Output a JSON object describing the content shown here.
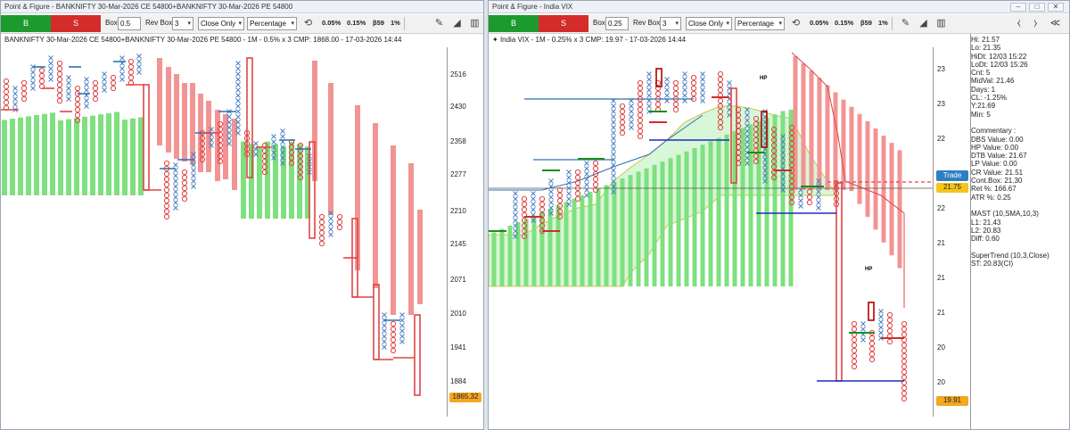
{
  "left_window": {
    "title": "Point & Figure - BANKNIFTY 30-Mar-2026 CE 54800+BANKNIFTY 30-Mar-2026 PE 54800",
    "toolbar": {
      "buy_label": "B",
      "sell_label": "S",
      "box_label": "Box",
      "box_value": "0.5",
      "revbox_label": "Rev Box",
      "revbox_value": "3",
      "method_value": "Close Only",
      "scale_value": "Percentage",
      "pct1": "0.05%",
      "pct2": "0.15%",
      "pct3": "β59",
      "pct4": "1%"
    },
    "chart_header": "BANKNIFTY 30-Mar-2026 CE 54800+BANKNIFTY 30-Mar-2026 PE 54800 - 1M - 0.5% x 3 CMP: 1868.00 - 17-03-2026 14:44",
    "y_ticks": [
      "2516",
      "2430",
      "2358",
      "2277",
      "2210",
      "2145",
      "2071",
      "2010",
      "1941",
      "1884"
    ],
    "current_price_tag": "1865.32",
    "colors": {
      "x_col": "#4a7fc1",
      "o_col": "#e04545",
      "green_band": "#7ee07e",
      "red_band": "#f07f7f"
    }
  },
  "right_window": {
    "title": "Point & Figure - India VIX",
    "toolbar": {
      "buy_label": "B",
      "sell_label": "S",
      "box_label": "Box",
      "box_value": "0.25",
      "revbox_label": "Rev Box",
      "revbox_value": "3",
      "method_value": "Close Only",
      "scale_value": "Percentage",
      "pct1": "0.05%",
      "pct2": "0.15%",
      "pct3": "β59",
      "pct4": "1%"
    },
    "chart_header": "India VIX - 1M - 0.25% x 3 CMP: 19.97 - 17-03-2026 14:44",
    "y_ticks": [
      "23",
      "23",
      "22",
      "22",
      "22",
      "21",
      "21",
      "21",
      "20",
      "20"
    ],
    "trade_tag": "Trade",
    "trade_price_tag": "21.75",
    "current_price_tag": "19.91",
    "hp_labels": [
      "HP",
      "HP",
      "HP"
    ],
    "info_panel": [
      "Hi: 21.57",
      "Lo: 21.35",
      "HiDt: 12/03 15:22",
      "LoDt: 12/03 15:26",
      "Cnt: 5",
      "MidVal: 21.46",
      "Days: 1",
      "CL: -1.25%",
      "Y:21.69",
      "Min: 5",
      "",
      "Commentary :",
      "DBS Value:  0.00",
      "HP Value: 0.00",
      "DTB Value: 21.67",
      "LP Value: 0.00",
      "CR Value: 21.51",
      "Cont.Box: 21.30",
      "Ret %: 166.67",
      "ATR %: 0.25",
      "",
      "MAST (10,SMA,10,3)",
      "L1: 21.43",
      "L2: 20.83",
      "Diff: 0.60",
      "",
      "SuperTrend (10,3,Close)",
      "ST: 20.83(CI)"
    ]
  }
}
